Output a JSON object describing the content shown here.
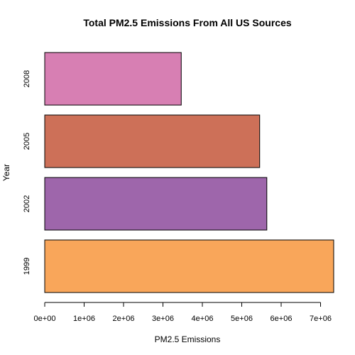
{
  "chart_data": {
    "type": "bar",
    "orientation": "horizontal",
    "title": "Total PM2.5 Emissions From All US Sources",
    "xlabel": "PM2.5 Emissions",
    "ylabel": "Year",
    "categories": [
      "1999",
      "2002",
      "2005",
      "2008"
    ],
    "values": [
      7332967,
      5635780,
      5454703,
      3464206
    ],
    "colors": [
      "#F9A65A",
      "#9E66AB",
      "#CD7058",
      "#D77FB3"
    ],
    "xlim": [
      0,
      7000000
    ],
    "xticks": [
      0,
      1000000,
      2000000,
      3000000,
      4000000,
      5000000,
      6000000,
      7000000
    ],
    "xtick_labels": [
      "0e+00",
      "1e+06",
      "2e+06",
      "3e+06",
      "4e+06",
      "5e+06",
      "6e+06",
      "7e+06"
    ],
    "grid": false,
    "legend": "none"
  }
}
